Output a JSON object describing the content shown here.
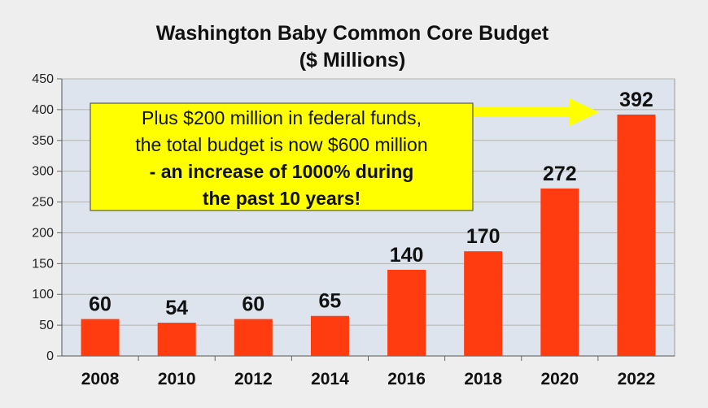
{
  "chart_data": {
    "type": "bar",
    "title": "Washington Baby Common Core Budget",
    "subtitle": "($ Millions)",
    "categories": [
      "2008",
      "2010",
      "2012",
      "2014",
      "2016",
      "2018",
      "2020",
      "2022"
    ],
    "values": [
      60,
      54,
      60,
      65,
      140,
      170,
      272,
      392
    ],
    "data_labels": [
      "60",
      "54",
      "60",
      "65",
      "140",
      "170",
      "272",
      "392"
    ],
    "yticks": [
      "0",
      "50",
      "100",
      "150",
      "200",
      "250",
      "300",
      "350",
      "400",
      "450"
    ],
    "ylim": [
      0,
      450
    ],
    "xlabel": "",
    "ylabel": "",
    "grid": true,
    "legend": "none",
    "annotation": {
      "lines": [
        "Plus $200 million in federal funds,",
        "the total budget is now $600 million",
        "- an increase of 1000% during",
        "the past 10 years!"
      ],
      "bold_lines": [
        false,
        false,
        true,
        true
      ],
      "arrow": "points right toward the 2022 bar"
    }
  },
  "colors": {
    "bar": "#ff3c0f",
    "plot_background": "#dde4ee",
    "page_background": "#eeeeee",
    "gridline": "#b3b3b3",
    "annotation_box": "#ffff00",
    "arrow": "#ffff00"
  }
}
